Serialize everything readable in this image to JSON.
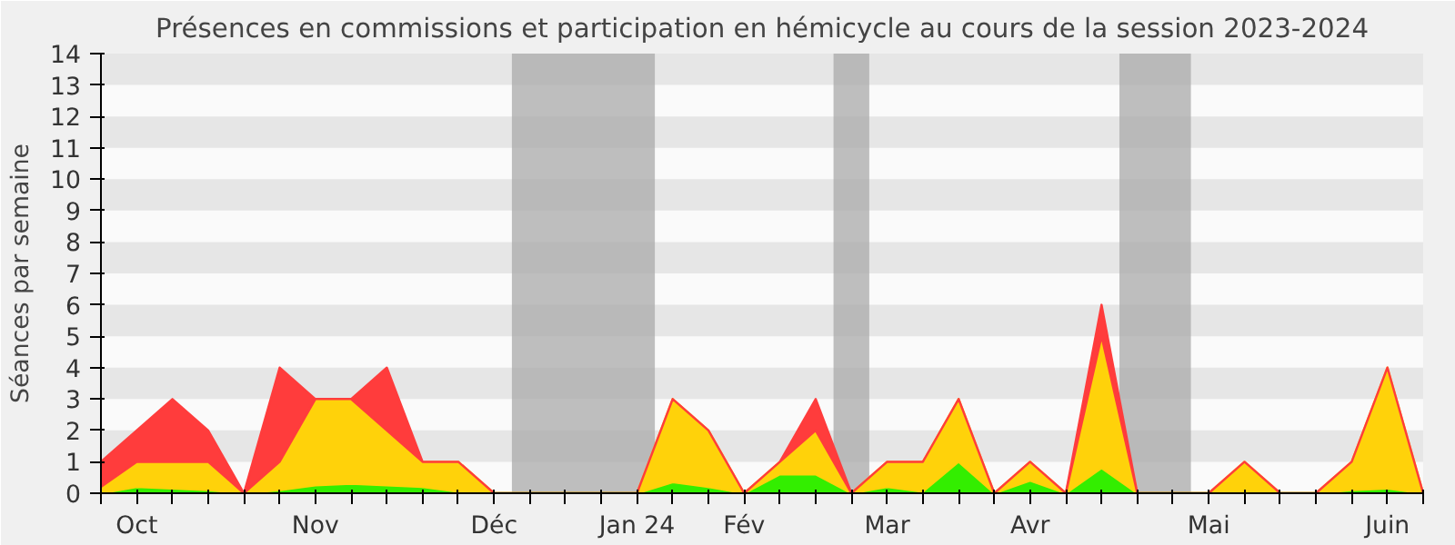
{
  "chart_data": {
    "type": "area",
    "stacked": true,
    "title": "Présences en commissions et participation en hémicycle au cours de la session 2023-2024",
    "ylabel": "Séances par semaine",
    "categories": [
      null,
      "Oct",
      null,
      null,
      null,
      null,
      "Nov",
      null,
      null,
      null,
      null,
      "Déc",
      null,
      null,
      null,
      "Jan 24",
      null,
      null,
      "Fév",
      null,
      null,
      null,
      "Mar",
      null,
      null,
      null,
      "Avr",
      null,
      null,
      null,
      null,
      "Mai",
      null,
      null,
      null,
      null,
      "Juin",
      null
    ],
    "series": [
      {
        "color": "#33ee00",
        "values": [
          0,
          0.2,
          0.15,
          0.1,
          0,
          0.1,
          0.25,
          0.3,
          0.25,
          0.2,
          0.05,
          0,
          0,
          0,
          0,
          0,
          0.35,
          0.2,
          0,
          0.6,
          0.6,
          0,
          0.2,
          0.05,
          1,
          0,
          0.4,
          0,
          0.8,
          0,
          0,
          0,
          0.05,
          0,
          0,
          0.1,
          0.15,
          0
        ]
      },
      {
        "color": "#ffd20a",
        "values": [
          0.2,
          0.8,
          0.85,
          0.9,
          0,
          0.9,
          2.75,
          2.7,
          1.75,
          0.8,
          0.95,
          0,
          0,
          0,
          0,
          0,
          2.65,
          1.8,
          0,
          0.4,
          1.4,
          0,
          0.8,
          0.95,
          2,
          0,
          0.6,
          0,
          4.2,
          0,
          0,
          0,
          0.95,
          0,
          0,
          0.9,
          3.85,
          0
        ]
      },
      {
        "color": "#ff3c3c",
        "values": [
          0.8,
          1,
          2,
          1,
          0,
          3,
          0,
          0,
          2,
          0,
          0,
          0,
          0,
          0,
          0,
          0,
          0,
          0,
          0,
          0,
          1,
          0,
          0,
          0,
          0,
          0,
          0,
          0,
          1,
          0,
          0,
          0,
          0,
          0,
          0,
          0,
          0,
          0
        ]
      }
    ],
    "ylim": [
      0,
      14
    ],
    "yticks": [
      0,
      1,
      2,
      3,
      4,
      5,
      6,
      7,
      8,
      9,
      10,
      11,
      12,
      13,
      14
    ]
  }
}
